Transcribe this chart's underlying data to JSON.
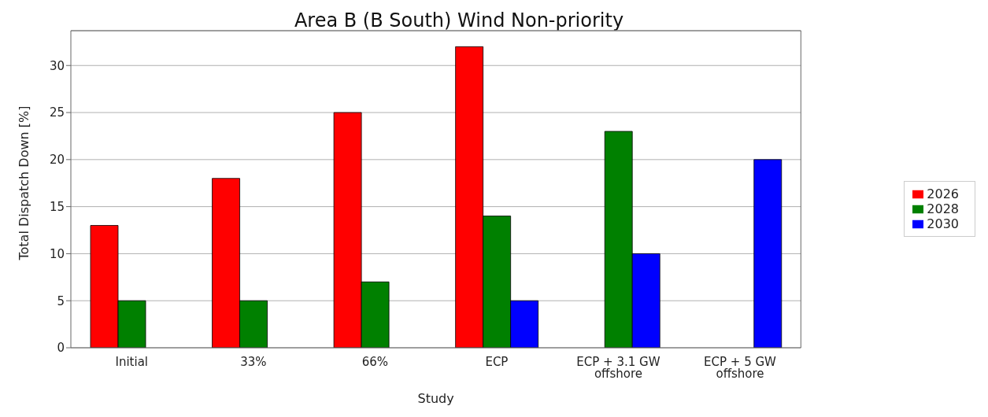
{
  "chart_data": {
    "type": "bar",
    "title": "Area B (B South) Wind Non-priority",
    "xlabel": "Study",
    "ylabel": "Total Dispatch Down [%]",
    "categories": [
      "Initial",
      "33%",
      "66%",
      "ECP",
      "ECP + 3.1 GW offshore",
      "ECP + 5 GW offshore"
    ],
    "series": [
      {
        "name": "2026",
        "color": "#ff0000",
        "values": [
          13,
          18,
          25,
          32,
          null,
          null
        ]
      },
      {
        "name": "2028",
        "color": "#008000",
        "values": [
          5,
          5,
          7,
          14,
          23,
          null
        ]
      },
      {
        "name": "2030",
        "color": "#0000ff",
        "values": [
          null,
          null,
          null,
          5,
          10,
          20
        ]
      }
    ],
    "ylim": [
      0,
      33.7
    ],
    "yticks": [
      0,
      5,
      10,
      15,
      20,
      25,
      30
    ],
    "grid": "y",
    "legend": "right"
  }
}
